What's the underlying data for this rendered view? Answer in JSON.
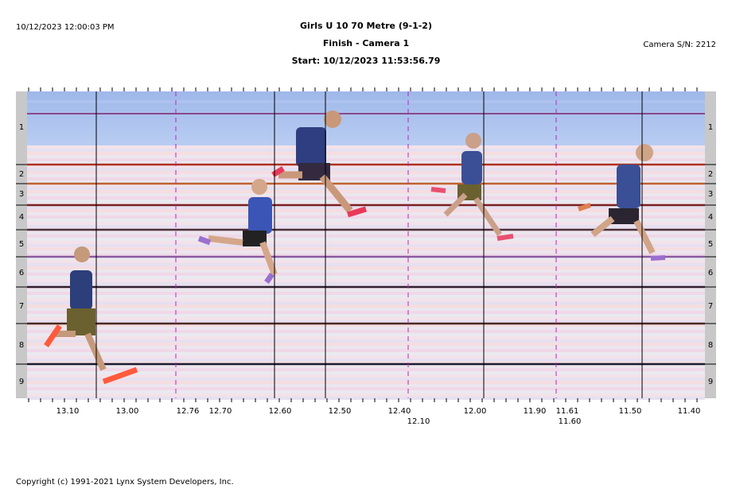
{
  "header": {
    "timestamp": "10/12/2023 12:00:03 PM",
    "title": "Girls U 10 70 Metre (9-1-2)",
    "subtitle": "Finish - Camera 1",
    "start": "Start: 10/12/2023 11:53:56.79",
    "camera": "Camera S/N: 2212"
  },
  "lanes": [
    "1",
    "2",
    "3",
    "4",
    "5",
    "6",
    "7",
    "8",
    "9"
  ],
  "time_labels": [
    "13.10",
    "13.00",
    "12.76",
    "12.70",
    "12.60",
    "12.50",
    "12.40",
    "12.10",
    "12.00",
    "11.90",
    "11.61",
    "11.60",
    "11.50",
    "11.40"
  ],
  "copyright": "Copyright (c) 1991-2021 Lynx System Developers, Inc."
}
